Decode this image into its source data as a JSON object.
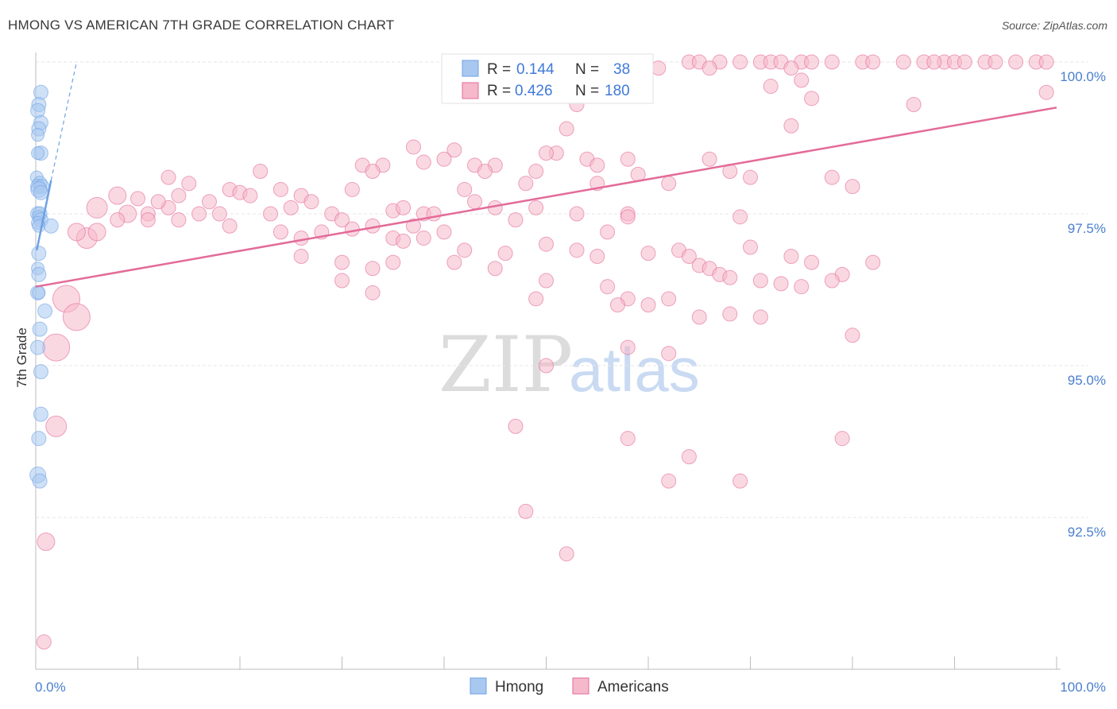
{
  "header": {
    "title": "HMONG VS AMERICAN 7TH GRADE CORRELATION CHART",
    "source": "Source: ZipAtlas.com"
  },
  "watermark": {
    "zip": "ZIP",
    "atlas": "atlas"
  },
  "legend_box": {
    "rows": [
      {
        "r_label": "R =",
        "r_value": "0.144",
        "n_label": "N =",
        "n_value": "38",
        "color": "#a8c8f0"
      },
      {
        "r_label": "R =",
        "r_value": "0.426",
        "n_label": "N =",
        "n_value": "180",
        "color": "#f6b8cb"
      }
    ]
  },
  "bottom_legend": [
    {
      "label": "Hmong",
      "color": "#a8c8f0"
    },
    {
      "label": "Americans",
      "color": "#f6b8cb"
    }
  ],
  "chart_data": {
    "type": "scatter",
    "title": "HMONG VS AMERICAN 7TH GRADE CORRELATION CHART",
    "xlabel": "",
    "ylabel": "7th Grade",
    "xlim": [
      0,
      100
    ],
    "ylim": [
      90.3,
      100.2
    ],
    "x_tick_labels": [
      "0.0%",
      "100.0%"
    ],
    "y_ticks": [
      92.5,
      95.0,
      97.5,
      100.0
    ],
    "y_tick_labels": [
      "92.5%",
      "95.0%",
      "97.5%",
      "100.0%"
    ],
    "grid": true,
    "series": [
      {
        "name": "Hmong",
        "color": "#6fa2e4",
        "fill": "#a8c8f0",
        "trend": {
          "x": [
            0.1,
            1.5
          ],
          "y": [
            96.9,
            98.05
          ],
          "dashed_to": [
            4.0,
            100.0
          ]
        },
        "points": [
          [
            0.5,
            99.5,
            9
          ],
          [
            0.3,
            99.3,
            9
          ],
          [
            0.2,
            99.2,
            9
          ],
          [
            0.5,
            99.0,
            9
          ],
          [
            0.3,
            98.9,
            9
          ],
          [
            0.2,
            98.8,
            8
          ],
          [
            0.5,
            98.5,
            9
          ],
          [
            0.2,
            98.5,
            8
          ],
          [
            0.1,
            98.1,
            8
          ],
          [
            0.4,
            98.0,
            9
          ],
          [
            0.2,
            97.95,
            9
          ],
          [
            0.6,
            97.95,
            9
          ],
          [
            0.3,
            97.9,
            10
          ],
          [
            0.5,
            97.85,
            9
          ],
          [
            0.2,
            97.5,
            9
          ],
          [
            0.4,
            97.5,
            9
          ],
          [
            0.3,
            97.45,
            8
          ],
          [
            0.5,
            97.4,
            9
          ],
          [
            0.2,
            97.35,
            8
          ],
          [
            0.3,
            97.3,
            8
          ],
          [
            1.5,
            97.3,
            9
          ],
          [
            0.3,
            96.85,
            9
          ],
          [
            0.2,
            96.6,
            8
          ],
          [
            0.3,
            96.5,
            9
          ],
          [
            0.2,
            96.2,
            9
          ],
          [
            0.3,
            96.2,
            8
          ],
          [
            0.9,
            95.9,
            9
          ],
          [
            0.4,
            95.6,
            9
          ],
          [
            0.2,
            95.3,
            9
          ],
          [
            0.5,
            94.9,
            9
          ],
          [
            0.5,
            94.2,
            9
          ],
          [
            0.3,
            93.8,
            9
          ],
          [
            0.2,
            93.2,
            10
          ],
          [
            0.4,
            93.1,
            9
          ]
        ]
      },
      {
        "name": "Americans",
        "color": "#e36b98",
        "fill": "#f6b8cb",
        "trend": {
          "x": [
            0,
            100
          ],
          "y": [
            96.3,
            99.25
          ]
        },
        "points": [
          [
            59,
            100.0,
            9
          ],
          [
            64,
            100.0,
            9
          ],
          [
            65,
            100.0,
            9
          ],
          [
            67,
            100.0,
            9
          ],
          [
            69,
            100.0,
            9
          ],
          [
            71,
            100.0,
            9
          ],
          [
            72,
            100.0,
            9
          ],
          [
            73,
            100.0,
            9
          ],
          [
            75,
            100.0,
            9
          ],
          [
            76,
            100.0,
            9
          ],
          [
            78,
            100.0,
            9
          ],
          [
            81,
            100.0,
            9
          ],
          [
            82,
            100.0,
            9
          ],
          [
            85,
            100.0,
            9
          ],
          [
            87,
            100.0,
            9
          ],
          [
            89,
            100.0,
            9
          ],
          [
            90,
            100.0,
            9
          ],
          [
            91,
            100.0,
            9
          ],
          [
            93,
            100.0,
            9
          ],
          [
            94,
            100.0,
            9
          ],
          [
            96,
            100.0,
            9
          ],
          [
            98,
            100.0,
            9
          ],
          [
            99,
            100.0,
            9
          ],
          [
            88,
            100.0,
            9
          ],
          [
            61,
            99.9,
            9
          ],
          [
            66,
            99.9,
            9
          ],
          [
            74,
            99.9,
            9
          ],
          [
            75,
            99.7,
            9
          ],
          [
            72,
            99.6,
            9
          ],
          [
            53,
            99.5,
            9
          ],
          [
            76,
            99.4,
            9
          ],
          [
            86,
            99.3,
            9
          ],
          [
            99,
            99.5,
            9
          ],
          [
            53,
            99.3,
            9
          ],
          [
            74,
            98.95,
            9
          ],
          [
            52,
            98.9,
            9
          ],
          [
            37,
            98.6,
            9
          ],
          [
            41,
            98.55,
            9
          ],
          [
            40,
            98.4,
            9
          ],
          [
            38,
            98.35,
            9
          ],
          [
            43,
            98.3,
            9
          ],
          [
            34,
            98.3,
            9
          ],
          [
            45,
            98.3,
            9
          ],
          [
            54,
            98.4,
            9
          ],
          [
            51,
            98.5,
            9
          ],
          [
            58,
            98.4,
            9
          ],
          [
            66,
            98.4,
            9
          ],
          [
            50,
            98.5,
            9
          ],
          [
            55,
            98.3,
            9
          ],
          [
            44,
            98.2,
            9
          ],
          [
            32,
            98.3,
            9
          ],
          [
            33,
            98.2,
            9
          ],
          [
            49,
            98.2,
            9
          ],
          [
            59,
            98.15,
            9
          ],
          [
            68,
            98.2,
            9
          ],
          [
            78,
            98.1,
            9
          ],
          [
            48,
            98.0,
            9
          ],
          [
            55,
            98.0,
            9
          ],
          [
            62,
            98.0,
            9
          ],
          [
            31,
            97.9,
            9
          ],
          [
            42,
            97.9,
            9
          ],
          [
            80,
            97.95,
            9
          ],
          [
            70,
            98.1,
            9
          ],
          [
            22,
            98.2,
            9
          ],
          [
            13,
            98.1,
            9
          ],
          [
            15,
            98.0,
            9
          ],
          [
            19,
            97.9,
            9
          ],
          [
            20,
            97.85,
            9
          ],
          [
            24,
            97.9,
            9
          ],
          [
            26,
            97.8,
            9
          ],
          [
            14,
            97.8,
            9
          ],
          [
            10,
            97.75,
            9
          ],
          [
            8,
            97.8,
            11
          ],
          [
            6,
            97.6,
            13
          ],
          [
            9,
            97.5,
            11
          ],
          [
            11,
            97.5,
            9
          ],
          [
            13,
            97.6,
            9
          ],
          [
            16,
            97.5,
            9
          ],
          [
            17,
            97.7,
            9
          ],
          [
            18,
            97.5,
            9
          ],
          [
            12,
            97.7,
            9
          ],
          [
            21,
            97.8,
            9
          ],
          [
            23,
            97.5,
            9
          ],
          [
            25,
            97.6,
            9
          ],
          [
            27,
            97.7,
            9
          ],
          [
            29,
            97.5,
            9
          ],
          [
            30,
            97.4,
            9
          ],
          [
            35,
            97.55,
            9
          ],
          [
            36,
            97.6,
            9
          ],
          [
            37,
            97.3,
            9
          ],
          [
            38,
            97.5,
            9
          ],
          [
            39,
            97.5,
            9
          ],
          [
            40,
            97.2,
            9
          ],
          [
            45,
            97.6,
            9
          ],
          [
            47,
            97.4,
            9
          ],
          [
            49,
            97.6,
            9
          ],
          [
            53,
            97.5,
            9
          ],
          [
            58,
            97.5,
            9
          ],
          [
            58,
            97.45,
            9
          ],
          [
            69,
            97.45,
            9
          ],
          [
            14,
            97.4,
            9
          ],
          [
            19,
            97.3,
            9
          ],
          [
            24,
            97.2,
            9
          ],
          [
            26,
            97.1,
            9
          ],
          [
            28,
            97.2,
            9
          ],
          [
            31,
            97.25,
            9
          ],
          [
            33,
            97.3,
            9
          ],
          [
            35,
            97.1,
            9
          ],
          [
            5,
            97.1,
            13
          ],
          [
            4,
            97.2,
            11
          ],
          [
            6,
            97.2,
            11
          ],
          [
            36,
            97.05,
            9
          ],
          [
            38,
            97.1,
            9
          ],
          [
            42,
            96.9,
            9
          ],
          [
            46,
            96.85,
            9
          ],
          [
            50,
            97.0,
            9
          ],
          [
            55,
            96.8,
            9
          ],
          [
            53,
            96.9,
            9
          ],
          [
            60,
            96.85,
            9
          ],
          [
            63,
            96.9,
            9
          ],
          [
            70,
            96.95,
            9
          ],
          [
            74,
            96.8,
            9
          ],
          [
            76,
            96.7,
            9
          ],
          [
            79,
            96.5,
            9
          ],
          [
            82,
            96.7,
            9
          ],
          [
            64,
            96.8,
            9
          ],
          [
            65,
            96.65,
            9
          ],
          [
            66,
            96.6,
            9
          ],
          [
            67,
            96.5,
            9
          ],
          [
            68,
            96.45,
            9
          ],
          [
            71,
            96.4,
            9
          ],
          [
            78,
            96.4,
            9
          ],
          [
            73,
            96.35,
            9
          ],
          [
            75,
            96.3,
            9
          ],
          [
            26,
            96.8,
            9
          ],
          [
            30,
            96.7,
            9
          ],
          [
            33,
            96.6,
            9
          ],
          [
            35,
            96.7,
            9
          ],
          [
            41,
            96.7,
            9
          ],
          [
            45,
            96.6,
            9
          ],
          [
            50,
            96.4,
            9
          ],
          [
            56,
            96.3,
            9
          ],
          [
            58,
            96.1,
            9
          ],
          [
            62,
            96.1,
            9
          ],
          [
            3,
            96.1,
            17
          ],
          [
            4,
            95.8,
            17
          ],
          [
            2,
            95.3,
            17
          ],
          [
            2,
            94.0,
            13
          ],
          [
            1,
            92.1,
            11
          ],
          [
            0.8,
            90.45,
            9
          ],
          [
            49,
            96.1,
            9
          ],
          [
            57,
            96.0,
            9
          ],
          [
            60,
            96.0,
            9
          ],
          [
            65,
            95.8,
            9
          ],
          [
            68,
            95.85,
            9
          ],
          [
            71,
            95.8,
            9
          ],
          [
            80,
            95.5,
            9
          ],
          [
            58,
            95.3,
            9
          ],
          [
            62,
            95.2,
            9
          ],
          [
            50,
            95.0,
            9
          ],
          [
            47,
            94.0,
            9
          ],
          [
            58,
            93.8,
            9
          ],
          [
            64,
            93.5,
            9
          ],
          [
            79,
            93.8,
            9
          ],
          [
            62,
            93.1,
            9
          ],
          [
            69,
            93.1,
            9
          ],
          [
            48,
            92.6,
            9
          ],
          [
            52,
            91.9,
            9
          ],
          [
            30,
            96.4,
            9
          ],
          [
            33,
            96.2,
            9
          ],
          [
            8,
            97.4,
            9
          ],
          [
            11,
            97.4,
            9
          ],
          [
            43,
            97.7,
            9
          ],
          [
            56,
            97.2,
            9
          ]
        ]
      }
    ]
  }
}
